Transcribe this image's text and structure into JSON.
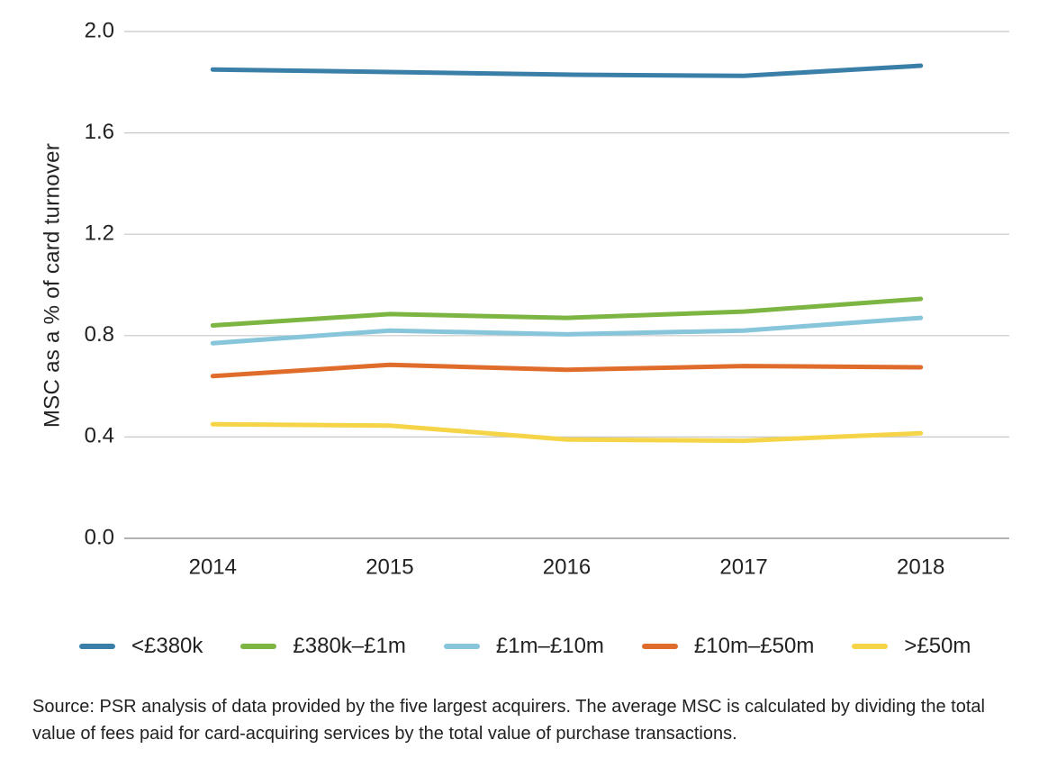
{
  "chart_data": {
    "type": "line",
    "title": "",
    "xlabel": "",
    "ylabel": "MSC as a % of card turnover",
    "x": [
      "2014",
      "2015",
      "2016",
      "2017",
      "2018"
    ],
    "ylim": [
      0.0,
      2.0
    ],
    "yticks": [
      "0.0",
      "0.4",
      "0.8",
      "1.2",
      "1.6",
      "2.0"
    ],
    "grid": "horizontal",
    "legend_position": "bottom",
    "series": [
      {
        "name": "<£380k",
        "color": "#3A7FA8",
        "values": [
          1.85,
          1.84,
          1.83,
          1.825,
          1.865
        ]
      },
      {
        "name": "£380k–£1m",
        "color": "#7DB543",
        "values": [
          0.84,
          0.885,
          0.87,
          0.895,
          0.945
        ]
      },
      {
        "name": "£1m–£10m",
        "color": "#86C5DA",
        "values": [
          0.77,
          0.82,
          0.805,
          0.82,
          0.87
        ]
      },
      {
        "name": "£10m–£50m",
        "color": "#E06C2B",
        "values": [
          0.64,
          0.685,
          0.665,
          0.68,
          0.675
        ]
      },
      {
        "name": ">£50m",
        "color": "#F5D547",
        "values": [
          0.45,
          0.445,
          0.39,
          0.385,
          0.415
        ]
      }
    ]
  },
  "source_note": "Source: PSR analysis of data provided by the five largest acquirers. The average MSC is calculated by dividing the total value of fees paid for card-acquiring services by the total value of purchase transactions."
}
